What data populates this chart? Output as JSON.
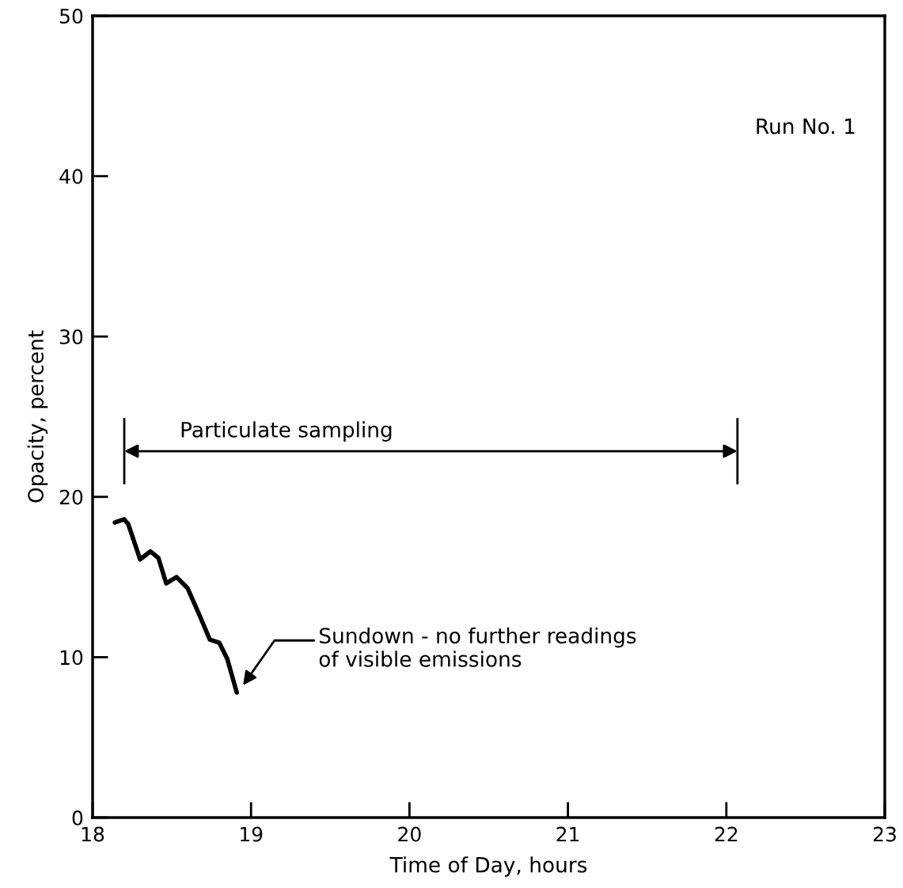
{
  "chart_data": {
    "type": "line",
    "xlabel": "Time of Day, hours",
    "ylabel": "Opacity, percent",
    "x": [
      18.14,
      18.2,
      18.225,
      18.3,
      18.365,
      18.415,
      18.465,
      18.53,
      18.6,
      18.68,
      18.74,
      18.8,
      18.85,
      18.91
    ],
    "series": [
      {
        "color": "#000000",
        "values": [
          18.4,
          18.6,
          18.3,
          16.1,
          16.6,
          16.2,
          14.6,
          15.0,
          14.3,
          12.5,
          11.1,
          10.9,
          9.9,
          7.8
        ]
      }
    ],
    "xlim": [
      18,
      23
    ],
    "xticks": [
      18,
      19,
      20,
      21,
      22,
      23
    ],
    "ylim": [
      0,
      50
    ],
    "yticks": [
      0,
      10,
      20,
      30,
      40,
      50
    ],
    "grid": false,
    "marker": "none",
    "line_style": "solid",
    "annotations": [
      "Particulate sampling",
      "Sundown - no further readings\nof visible emissions",
      "Run No. 1"
    ]
  }
}
